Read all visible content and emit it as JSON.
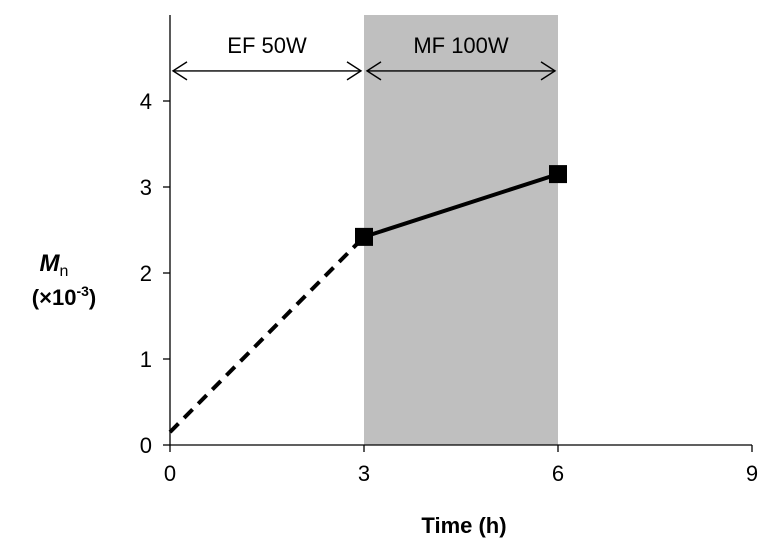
{
  "chart_data": {
    "type": "line",
    "xlabel": "Time (h)",
    "ylabel_main": "M",
    "ylabel_sub": "n",
    "ylabel_unit_open": "(×10",
    "ylabel_unit_exp": "-3",
    "ylabel_unit_close": ")",
    "xlim": [
      0,
      9
    ],
    "ylim": [
      0,
      5
    ],
    "xticks": [
      0,
      3,
      6,
      9
    ],
    "yticks": [
      0,
      1,
      2,
      3,
      4
    ],
    "grid": false,
    "series": [
      {
        "style": "dashed",
        "marker": "none",
        "points": [
          [
            0,
            0.15
          ],
          [
            3,
            2.42
          ]
        ]
      },
      {
        "style": "solid",
        "marker": "square",
        "points": [
          [
            3,
            2.42
          ],
          [
            6,
            3.15
          ]
        ]
      }
    ],
    "shaded_region": {
      "x": [
        3,
        6
      ],
      "color": "#bfbfbf"
    },
    "annotations": [
      {
        "text": "EF 50W",
        "x_range": [
          0,
          3
        ],
        "y": 4.35
      },
      {
        "text": "MF 100W",
        "x_range": [
          3,
          6
        ],
        "y": 4.35
      }
    ],
    "colors": {
      "line": "#000000",
      "shade": "#bfbfbf",
      "axis": "#000000"
    }
  }
}
